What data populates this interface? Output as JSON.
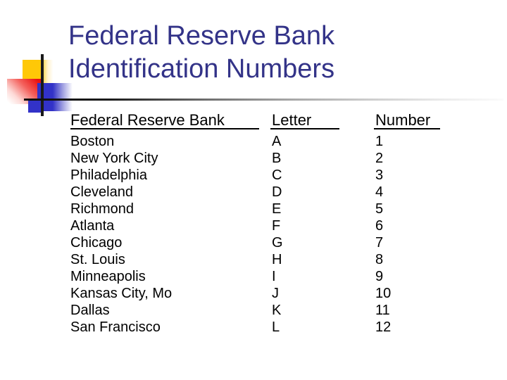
{
  "slide": {
    "title_line1": "Federal Reserve Bank",
    "title_line2": "Identification Numbers",
    "table": {
      "header_bank": "Federal Reserve Bank",
      "header_letter": "Letter",
      "header_number": "Number",
      "rows": [
        {
          "bank": "Boston",
          "letter": "A",
          "number": "1"
        },
        {
          "bank": "New York City",
          "letter": "B",
          "number": "2"
        },
        {
          "bank": "Philadelphia",
          "letter": "C",
          "number": "3"
        },
        {
          "bank": "Cleveland",
          "letter": "D",
          "number": "4"
        },
        {
          "bank": "Richmond",
          "letter": "E",
          "number": "5"
        },
        {
          "bank": "Atlanta",
          "letter": "F",
          "number": "6"
        },
        {
          "bank": "Chicago",
          "letter": "G",
          "number": "7"
        },
        {
          "bank": "St. Louis",
          "letter": "H",
          "number": "8"
        },
        {
          "bank": "Minneapolis",
          "letter": "I",
          "number": "9"
        },
        {
          "bank": "Kansas City, Mo",
          "letter": "J",
          "number": "10"
        },
        {
          "bank": "Dallas",
          "letter": "K",
          "number": "11"
        },
        {
          "bank": "San Francisco",
          "letter": "L",
          "number": "12"
        }
      ]
    },
    "colors": {
      "title_text": "#333388",
      "body_text": "#000000",
      "accent_yellow": "#ffc807",
      "accent_red": "#e91111",
      "accent_blue": "#3232c8",
      "line_black": "#1a1a1a"
    }
  }
}
